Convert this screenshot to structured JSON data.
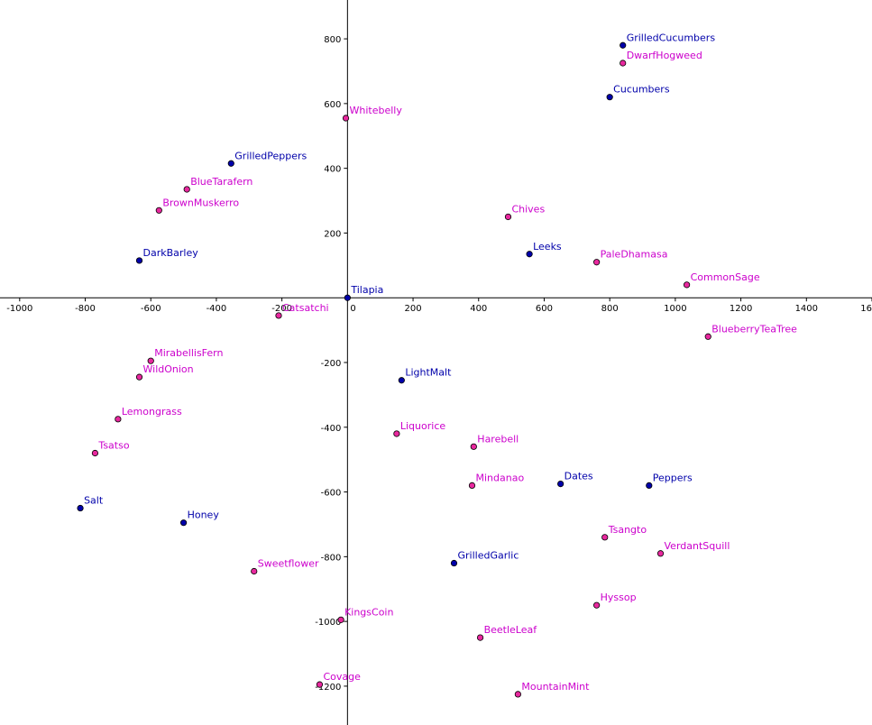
{
  "chart_data": {
    "type": "scatter",
    "title": "",
    "xlabel": "",
    "ylabel": "",
    "xlim": [
      -1060,
      1600
    ],
    "ylim": [
      -1320,
      920
    ],
    "grid": false,
    "x_ticks": [
      -1000,
      -800,
      -600,
      -400,
      -200,
      0,
      200,
      400,
      600,
      800,
      1000,
      1200,
      1400,
      1600
    ],
    "x_tick_labels": [
      "-1000",
      "-800",
      "-600",
      "-400",
      "-200",
      "0",
      "200",
      "400",
      "600",
      "800",
      "1000",
      "1200",
      "1400",
      "1600"
    ],
    "y_ticks": [
      -1200,
      -1000,
      -800,
      -600,
      -400,
      -200,
      200,
      400,
      600,
      800
    ],
    "y_tick_labels": [
      "-1200",
      "-1000",
      "-800",
      "-600",
      "-400",
      "-200",
      "200",
      "400",
      "600",
      "800"
    ],
    "colors": {
      "blue": "#0000aa",
      "magenta": "#cc00cc",
      "magenta_fill": "#e8289e"
    },
    "points": [
      {
        "label": "GrilledCucumbers",
        "x": 840,
        "y": 780,
        "color": "blue"
      },
      {
        "label": "DwarfHogweed",
        "x": 840,
        "y": 725,
        "color": "magenta"
      },
      {
        "label": "Cucumbers",
        "x": 800,
        "y": 620,
        "color": "blue"
      },
      {
        "label": "Whitebelly",
        "x": -5,
        "y": 555,
        "color": "magenta"
      },
      {
        "label": "GrilledPeppers",
        "x": -355,
        "y": 415,
        "color": "blue"
      },
      {
        "label": "BlueTarafern",
        "x": -490,
        "y": 335,
        "color": "magenta"
      },
      {
        "label": "BrownMuskerro",
        "x": -575,
        "y": 270,
        "color": "magenta"
      },
      {
        "label": "Chives",
        "x": 490,
        "y": 250,
        "color": "magenta"
      },
      {
        "label": "Leeks",
        "x": 555,
        "y": 135,
        "color": "blue"
      },
      {
        "label": "PaleDhamasa",
        "x": 760,
        "y": 110,
        "color": "magenta"
      },
      {
        "label": "DarkBarley",
        "x": -635,
        "y": 115,
        "color": "blue"
      },
      {
        "label": "CommonSage",
        "x": 1035,
        "y": 40,
        "color": "magenta"
      },
      {
        "label": "Tilapia",
        "x": 0,
        "y": 0,
        "color": "blue"
      },
      {
        "label": "Catsatchi",
        "x": -210,
        "y": -55,
        "color": "magenta"
      },
      {
        "label": "BlueberryTeaTree",
        "x": 1100,
        "y": -120,
        "color": "magenta"
      },
      {
        "label": "MirabellisFern",
        "x": -600,
        "y": -195,
        "color": "magenta"
      },
      {
        "label": "WildOnion",
        "x": -635,
        "y": -245,
        "color": "magenta"
      },
      {
        "label": "LightMalt",
        "x": 165,
        "y": -255,
        "color": "blue"
      },
      {
        "label": "Lemongrass",
        "x": -700,
        "y": -375,
        "color": "magenta"
      },
      {
        "label": "Liquorice",
        "x": 150,
        "y": -420,
        "color": "magenta"
      },
      {
        "label": "Harebell",
        "x": 385,
        "y": -460,
        "color": "magenta"
      },
      {
        "label": "Tsatso",
        "x": -770,
        "y": -480,
        "color": "magenta"
      },
      {
        "label": "Mindanao",
        "x": 380,
        "y": -580,
        "color": "magenta"
      },
      {
        "label": "Dates",
        "x": 650,
        "y": -575,
        "color": "blue"
      },
      {
        "label": "Peppers",
        "x": 920,
        "y": -580,
        "color": "blue"
      },
      {
        "label": "Salt",
        "x": -815,
        "y": -650,
        "color": "blue"
      },
      {
        "label": "Honey",
        "x": -500,
        "y": -695,
        "color": "blue"
      },
      {
        "label": "Tsangto",
        "x": 785,
        "y": -740,
        "color": "magenta"
      },
      {
        "label": "VerdantSquill",
        "x": 955,
        "y": -790,
        "color": "magenta"
      },
      {
        "label": "GrilledGarlic",
        "x": 325,
        "y": -820,
        "color": "blue"
      },
      {
        "label": "Sweetflower",
        "x": -285,
        "y": -845,
        "color": "magenta"
      },
      {
        "label": "Hyssop",
        "x": 760,
        "y": -950,
        "color": "magenta"
      },
      {
        "label": "KingsCoin",
        "x": -20,
        "y": -995,
        "color": "magenta"
      },
      {
        "label": "BeetleLeaf",
        "x": 405,
        "y": -1050,
        "color": "magenta"
      },
      {
        "label": "Covage",
        "x": -85,
        "y": -1195,
        "color": "magenta"
      },
      {
        "label": "MountainMint",
        "x": 520,
        "y": -1225,
        "color": "magenta"
      }
    ]
  }
}
